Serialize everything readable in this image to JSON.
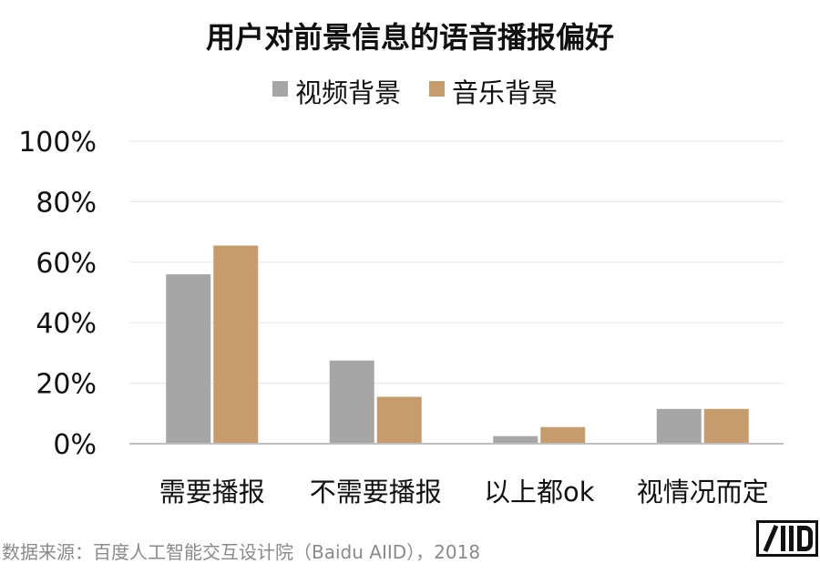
{
  "chart_data": {
    "type": "bar",
    "title": "用户对前景信息的语音播报偏好",
    "categories": [
      "需要播报",
      "不需要播报",
      "以上都ok",
      "视情况而定"
    ],
    "series": [
      {
        "name": "视频背景",
        "color": "#a6a6a6",
        "values": [
          56,
          27.5,
          2.5,
          11.5
        ]
      },
      {
        "name": "音乐背景",
        "color": "#c69c6d",
        "values": [
          65.5,
          15.5,
          5.5,
          11.5
        ]
      }
    ],
    "ylim": [
      0,
      100
    ],
    "yticks": [
      0,
      20,
      40,
      60,
      80,
      100
    ],
    "ytick_labels": [
      "0%",
      "20%",
      "40%",
      "60%",
      "80%",
      "100%"
    ],
    "grid": true,
    "legend": "top-center"
  },
  "footer": {
    "source": "数据来源：百度人工智能交互设计院（Baidu AIID），2018",
    "logo_text": "AIID"
  }
}
